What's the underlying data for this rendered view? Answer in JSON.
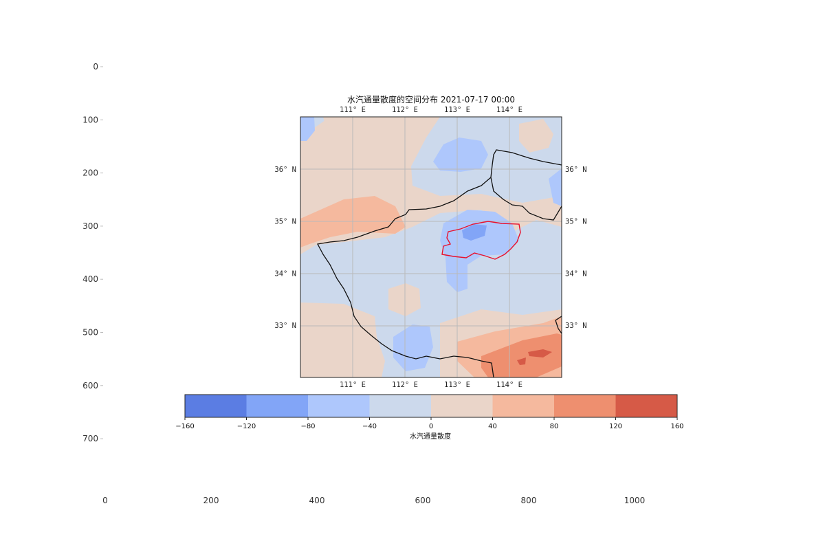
{
  "figure": {
    "title": "水汽通量散度的空间分布 2021-07-17 00:00",
    "outer_axes": {
      "x_ticks": [
        "0",
        "200",
        "400",
        "600",
        "800",
        "1000"
      ],
      "y_ticks": [
        "0",
        "100",
        "200",
        "300",
        "400",
        "500",
        "600",
        "700"
      ]
    },
    "map": {
      "lon_range": [
        110.0,
        115.0
      ],
      "lat_range": [
        32.0,
        37.0
      ],
      "lon_ticks": [
        {
          "value": 111,
          "label": "111° E"
        },
        {
          "value": 112,
          "label": "112° E"
        },
        {
          "value": 113,
          "label": "113° E"
        },
        {
          "value": 114,
          "label": "114° E"
        }
      ],
      "lat_ticks": [
        {
          "value": 36,
          "label": "36° N"
        },
        {
          "value": 35,
          "label": "35° N"
        },
        {
          "value": 34,
          "label": "34° N"
        },
        {
          "value": 33,
          "label": "33° N"
        }
      ],
      "grid": true,
      "province_border_color": "#111111",
      "highlight_region_color": "#e8112d"
    },
    "colorbar": {
      "label": "水汽通量散度",
      "levels": [
        -160,
        -120,
        -80,
        -40,
        0,
        40,
        80,
        120,
        160
      ],
      "tick_labels": [
        "−160",
        "−120",
        "−80",
        "−40",
        "0",
        "40",
        "80",
        "120",
        "160"
      ],
      "colors": [
        "#5b7de3",
        "#82a5f7",
        "#aec7fc",
        "#ccd9ec",
        "#ead5c9",
        "#f5b99e",
        "#ee8f6f",
        "#d65a47"
      ]
    }
  },
  "chart_data": {
    "type": "heatmap",
    "title": "水汽通量散度的空间分布 2021-07-17 00:00",
    "xlabel": "",
    "ylabel": "",
    "colorbar_label": "水汽通量散度",
    "levels": [
      -160,
      -120,
      -80,
      -40,
      0,
      40,
      80,
      120,
      160
    ],
    "x_ticks": [
      "111° E",
      "112° E",
      "113° E",
      "114° E"
    ],
    "y_ticks": [
      "33° N",
      "34° N",
      "35° N",
      "36° N"
    ],
    "features": [
      {
        "type": "convergence",
        "lon": 113.3,
        "lat": 34.8,
        "level_band": [
          -120,
          -80
        ]
      },
      {
        "type": "divergence",
        "lon": 114.3,
        "lat": 32.4,
        "level_band": [
          120,
          160
        ]
      },
      {
        "type": "divergence",
        "lon": 110.9,
        "lat": 34.9,
        "level_band": [
          40,
          80
        ]
      }
    ]
  }
}
